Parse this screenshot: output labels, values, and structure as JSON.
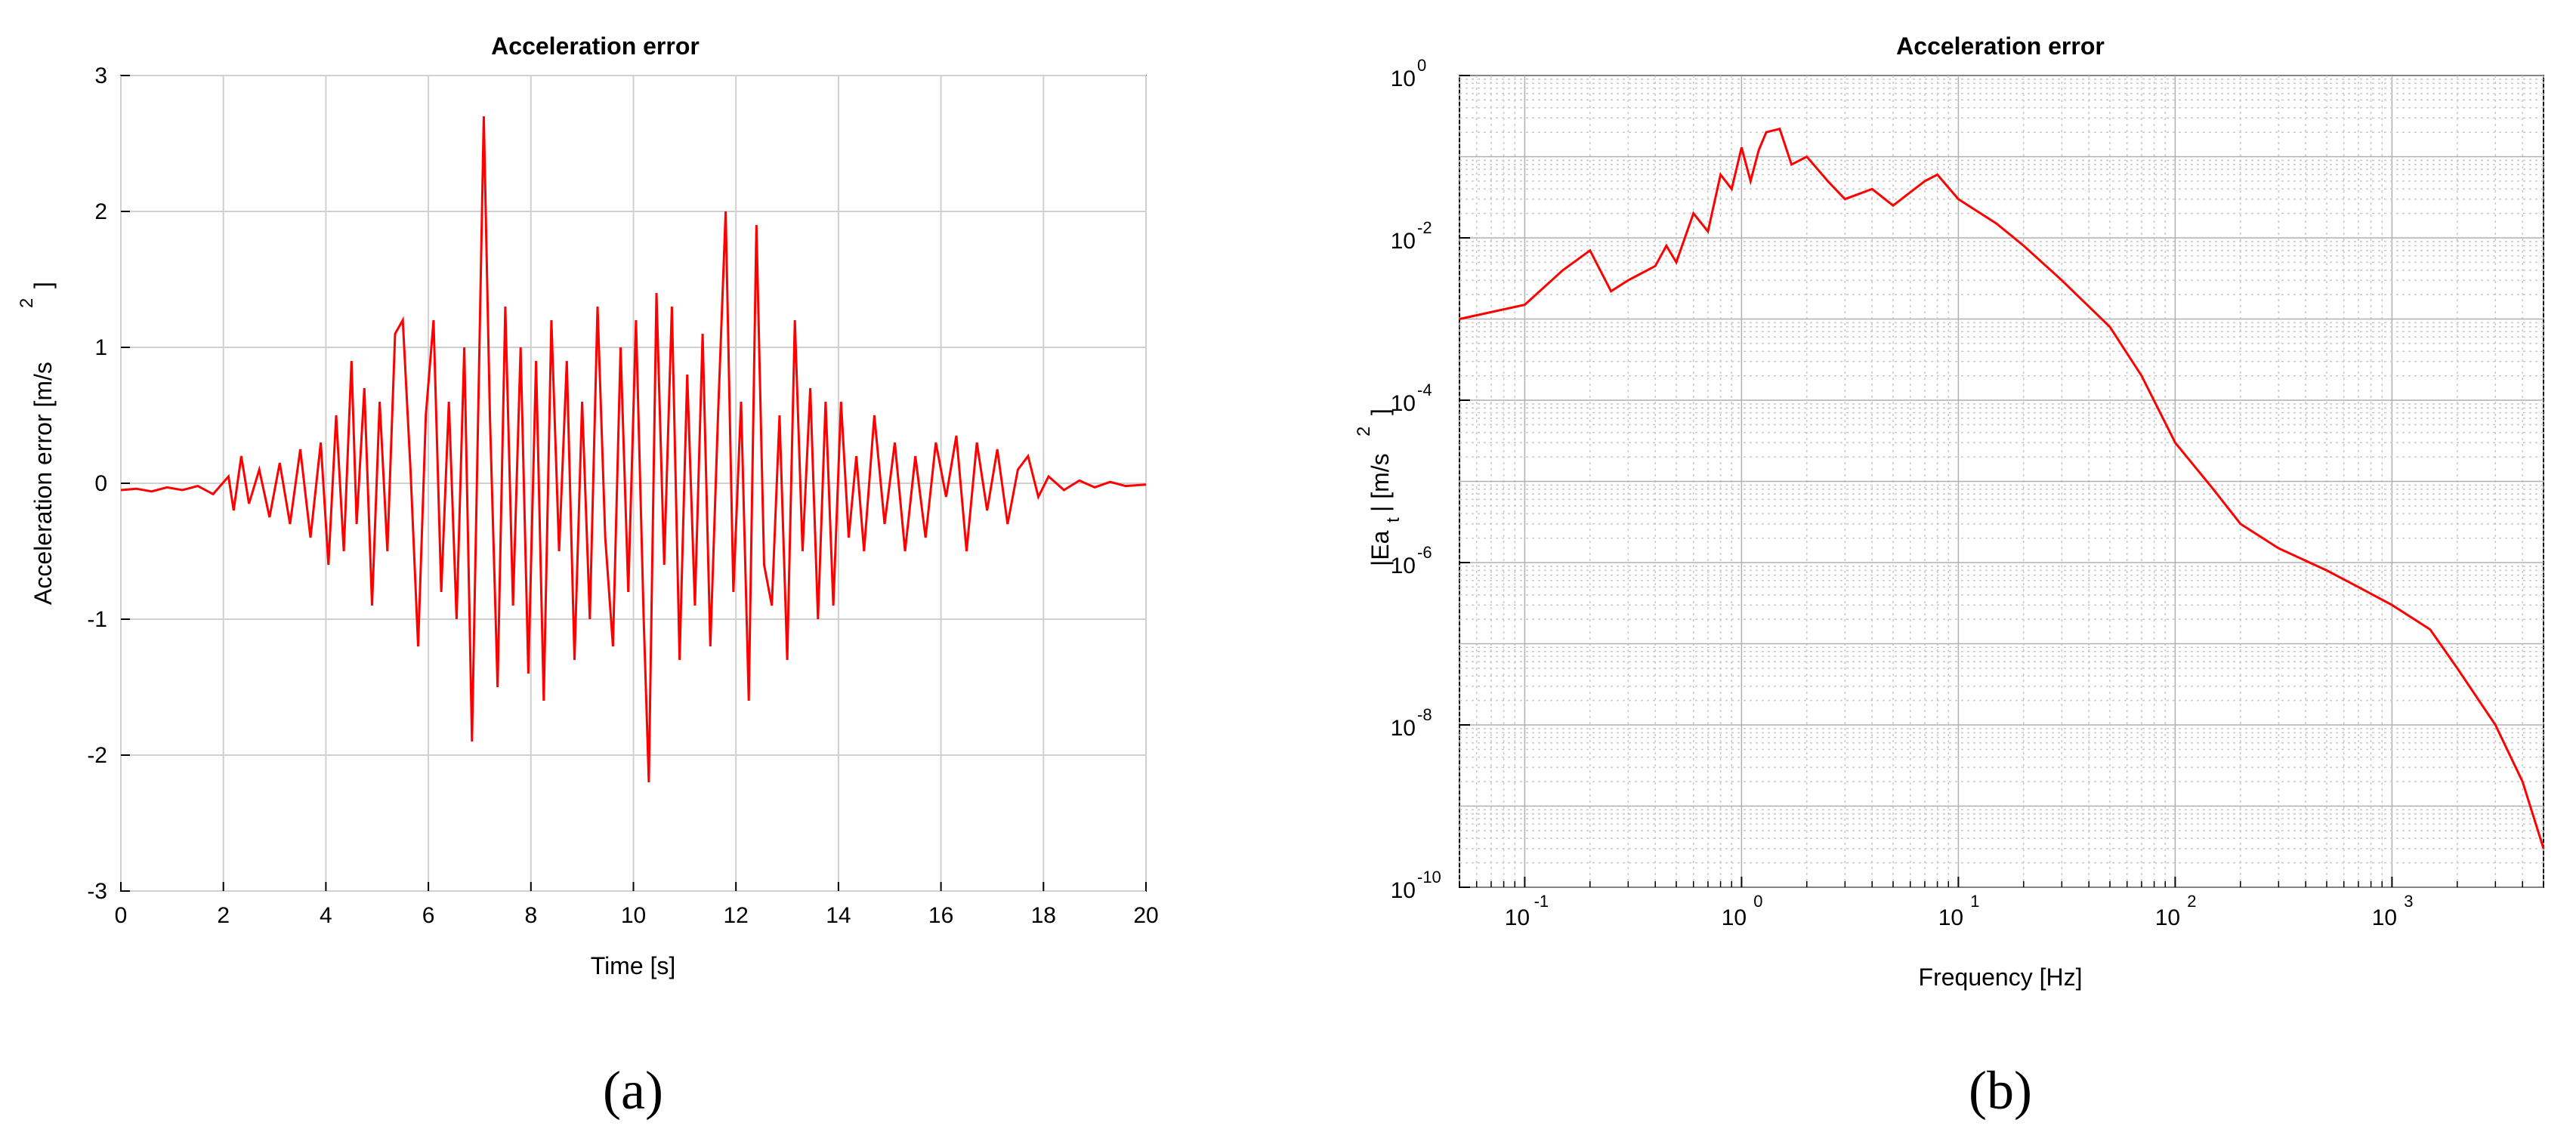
{
  "chart_data": [
    {
      "type": "line",
      "title": "Acceleration error",
      "xlabel": "Time [s]",
      "ylabel": "Acceleration error [m/s",
      "ylabel_sup": "2",
      "ylabel_close": "]",
      "xlim": [
        0,
        20
      ],
      "ylim": [
        -3,
        3
      ],
      "xticks": [
        0,
        2,
        4,
        6,
        8,
        10,
        12,
        14,
        16,
        18,
        20
      ],
      "yticks": [
        -3,
        -2,
        -1,
        0,
        1,
        2,
        3
      ],
      "grid": true,
      "color": "#ff0000",
      "panel_label": "(a)",
      "series": [
        {
          "x": [
            0,
            0.3,
            0.6,
            0.9,
            1.2,
            1.5,
            1.8,
            2.1,
            2.2,
            2.35,
            2.5,
            2.7,
            2.9,
            3.1,
            3.3,
            3.5,
            3.7,
            3.9,
            4.05,
            4.2,
            4.35,
            4.5,
            4.6,
            4.75,
            4.9,
            5.05,
            5.2,
            5.35,
            5.5,
            5.65,
            5.8,
            5.95,
            6.1,
            6.25,
            6.4,
            6.55,
            6.7,
            6.85,
            7.0,
            7.08,
            7.2,
            7.35,
            7.5,
            7.65,
            7.8,
            7.95,
            8.1,
            8.25,
            8.4,
            8.55,
            8.7,
            8.85,
            9.0,
            9.15,
            9.3,
            9.45,
            9.6,
            9.75,
            9.9,
            10.05,
            10.2,
            10.3,
            10.45,
            10.6,
            10.75,
            10.9,
            11.05,
            11.2,
            11.35,
            11.5,
            11.65,
            11.8,
            11.95,
            12.1,
            12.25,
            12.4,
            12.55,
            12.7,
            12.85,
            13.0,
            13.15,
            13.3,
            13.45,
            13.6,
            13.75,
            13.9,
            14.05,
            14.2,
            14.35,
            14.5,
            14.7,
            14.9,
            15.1,
            15.3,
            15.5,
            15.7,
            15.9,
            16.1,
            16.3,
            16.5,
            16.7,
            16.9,
            17.1,
            17.3,
            17.5,
            17.7,
            17.9,
            18.1,
            18.4,
            18.7,
            19.0,
            19.3,
            19.6,
            20.0
          ],
          "y": [
            -0.05,
            -0.04,
            -0.06,
            -0.03,
            -0.05,
            -0.02,
            -0.08,
            0.05,
            -0.2,
            0.2,
            -0.15,
            0.1,
            -0.25,
            0.15,
            -0.3,
            0.25,
            -0.4,
            0.3,
            -0.6,
            0.5,
            -0.5,
            0.9,
            -0.3,
            0.7,
            -0.9,
            0.6,
            -0.5,
            1.1,
            1.2,
            0.1,
            -1.2,
            0.5,
            1.2,
            -0.8,
            0.6,
            -1.0,
            1.0,
            -1.9,
            1.1,
            2.7,
            0.5,
            -1.5,
            1.3,
            -0.9,
            1.0,
            -1.4,
            0.9,
            -1.6,
            1.2,
            -0.5,
            0.9,
            -1.3,
            0.6,
            -1.0,
            1.3,
            -0.4,
            -1.2,
            1.0,
            -0.8,
            1.2,
            -1.0,
            -2.2,
            1.4,
            -0.6,
            1.3,
            -1.3,
            0.8,
            -0.9,
            1.1,
            -1.2,
            0.5,
            2.0,
            -0.8,
            0.6,
            -1.6,
            1.9,
            -0.6,
            -0.9,
            0.5,
            -1.3,
            1.2,
            -0.5,
            0.7,
            -1.0,
            0.6,
            -0.9,
            0.6,
            -0.4,
            0.2,
            -0.5,
            0.5,
            -0.3,
            0.3,
            -0.5,
            0.2,
            -0.4,
            0.3,
            -0.1,
            0.35,
            -0.5,
            0.3,
            -0.2,
            0.25,
            -0.3,
            0.1,
            0.2,
            -0.1,
            0.05,
            -0.05,
            0.02,
            -0.03,
            0.01,
            -0.02,
            -0.01
          ]
        }
      ]
    },
    {
      "type": "line",
      "title": "Acceleration error",
      "xlabel": "Frequency [Hz]",
      "ylabel_parts": [
        "|Ea",
        "t",
        "| [m/s",
        "2",
        "]"
      ],
      "xscale": "log",
      "yscale": "log",
      "xlim": [
        0.05,
        5000
      ],
      "ylim": [
        1e-10,
        1
      ],
      "xtick_bases": [
        "10",
        "10",
        "10",
        "10",
        "10"
      ],
      "xtick_exps": [
        "-1",
        "0",
        "1",
        "2",
        "3"
      ],
      "ytick_bases": [
        "10",
        "10",
        "10",
        "10",
        "10",
        "10"
      ],
      "ytick_exps": [
        "-10",
        "-8",
        "-6",
        "-4",
        "-2",
        "0"
      ],
      "grid": true,
      "color": "#ff0000",
      "panel_label": "(b)",
      "series": [
        {
          "x": [
            0.05,
            0.1,
            0.15,
            0.2,
            0.25,
            0.3,
            0.4,
            0.45,
            0.5,
            0.6,
            0.7,
            0.8,
            0.9,
            1.0,
            1.1,
            1.2,
            1.3,
            1.5,
            1.7,
            2.0,
            2.5,
            3.0,
            4.0,
            5.0,
            7.0,
            8.0,
            10,
            15,
            20,
            30,
            50,
            70,
            100,
            150,
            200,
            300,
            500,
            700,
            1000,
            1500,
            2000,
            3000,
            4000,
            5000
          ],
          "y": [
            0.001,
            0.0015,
            0.004,
            0.007,
            0.0022,
            0.003,
            0.0045,
            0.008,
            0.005,
            0.02,
            0.012,
            0.06,
            0.04,
            0.13,
            0.05,
            0.12,
            0.2,
            0.22,
            0.08,
            0.1,
            0.05,
            0.03,
            0.04,
            0.025,
            0.05,
            0.06,
            0.03,
            0.015,
            0.008,
            0.003,
            0.0008,
            0.0002,
            3e-05,
            8e-06,
            3e-06,
            1.5e-06,
            8e-07,
            5e-07,
            3e-07,
            1.5e-07,
            5e-08,
            1e-08,
            2e-09,
            3e-10
          ]
        }
      ]
    }
  ]
}
